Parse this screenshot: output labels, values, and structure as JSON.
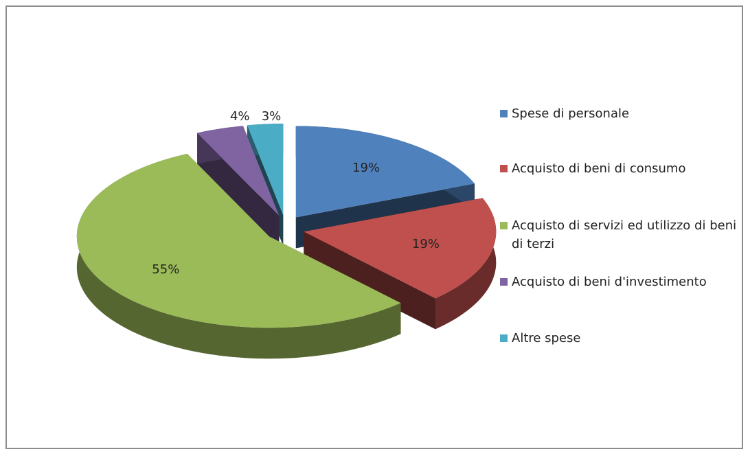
{
  "chart_data": {
    "type": "pie",
    "categories": [
      "Spese di personale",
      "Acquisto di beni di consumo",
      "Acquisto di servizi ed utilizzo di beni di terzi",
      "Acquisto di beni d'investimento",
      "Altre spese"
    ],
    "values": [
      19,
      19,
      55,
      4,
      3
    ],
    "value_labels": [
      "19%",
      "19%",
      "55%",
      "4%",
      "3%"
    ],
    "colors": [
      "#4F81BD",
      "#C0504D",
      "#9BBB59",
      "#8064A2",
      "#4BACC6"
    ],
    "legend": "right"
  }
}
